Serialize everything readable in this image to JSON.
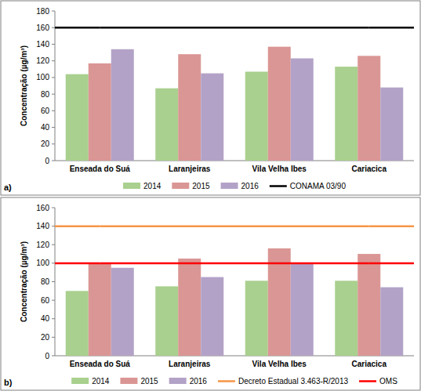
{
  "chart_data": [
    {
      "type": "bar",
      "title": "a)",
      "y_label": "Concentração (µg/m³)",
      "categories": [
        "Enseada do Suá",
        "Laranjeiras",
        "Vila Velha Ibes",
        "Cariacica"
      ],
      "series": [
        {
          "name": "2014",
          "color": "#a9d08e",
          "values": [
            104,
            87,
            107,
            113
          ]
        },
        {
          "name": "2015",
          "color": "#da9694",
          "values": [
            117,
            128,
            137,
            126
          ]
        },
        {
          "name": "2016",
          "color": "#b3a2c7",
          "values": [
            134,
            105,
            123,
            88
          ]
        },
        {
          "name": "CONAMA 03/90",
          "color": "#000000",
          "type": "line",
          "values": [
            160,
            160,
            160,
            160
          ]
        }
      ],
      "ylim": [
        0,
        180
      ],
      "yticks": [
        0,
        20,
        40,
        60,
        80,
        100,
        120,
        140,
        160,
        180
      ],
      "grid": false,
      "legend": "bottom"
    },
    {
      "type": "bar",
      "title": "b)",
      "y_label": "Concentração (µg/m³)",
      "categories": [
        "Enseada do Suá",
        "Laranjeiras",
        "Vila Velha Ibes",
        "Cariacica"
      ],
      "series": [
        {
          "name": "2014",
          "color": "#a9d08e",
          "values": [
            70,
            75,
            81,
            81
          ]
        },
        {
          "name": "2015",
          "color": "#da9694",
          "values": [
            100,
            105,
            116,
            110
          ]
        },
        {
          "name": "2016",
          "color": "#b3a2c7",
          "values": [
            95,
            85,
            100,
            74
          ]
        },
        {
          "name": "Decreto Estadual 3.463-R/2013",
          "color": "#f79646",
          "type": "line",
          "values": [
            140,
            140,
            140,
            140
          ]
        },
        {
          "name": "OMS",
          "color": "#ff0000",
          "type": "line",
          "values": [
            100,
            100,
            100,
            100
          ]
        }
      ],
      "ylim": [
        0,
        160
      ],
      "yticks": [
        0,
        20,
        40,
        60,
        80,
        100,
        120,
        140,
        160
      ],
      "grid": false,
      "legend": "bottom"
    }
  ]
}
